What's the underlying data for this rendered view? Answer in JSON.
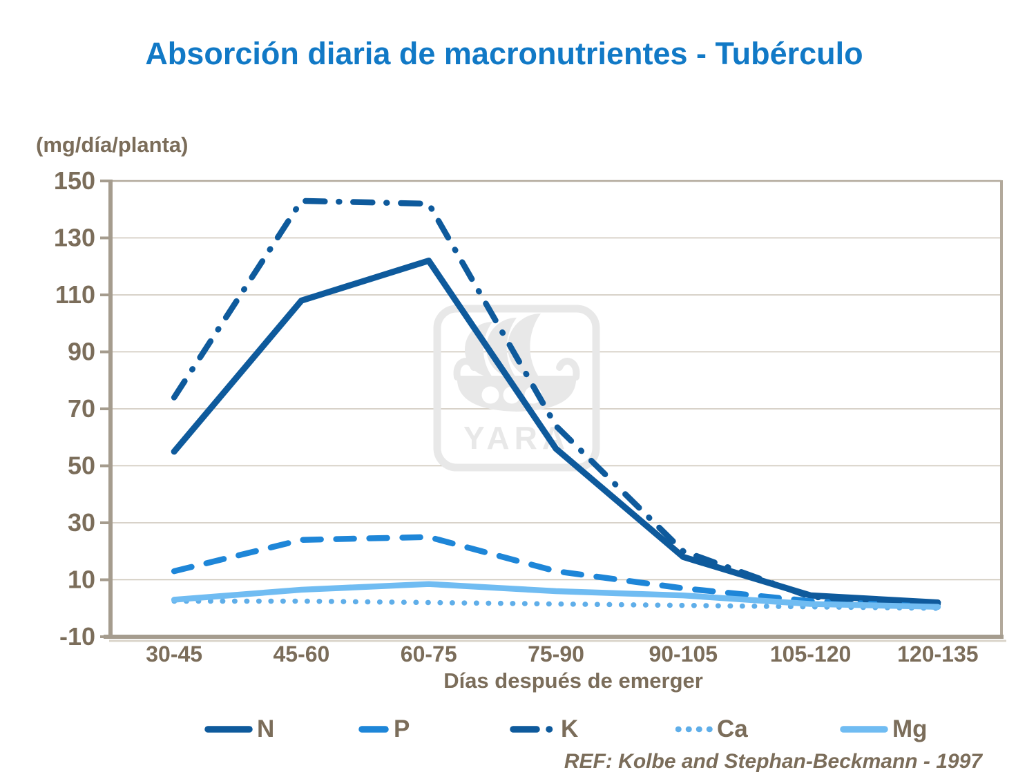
{
  "title": "Absorción diaria de macronutrientes - Tubérculo",
  "y_axis_unit": "(mg/día/planta)",
  "x_axis_title": "Días después de emerger",
  "reference": "REF: Kolbe and Stephan-Beckmann - 1997",
  "watermark": "YARA",
  "colors": {
    "title": "#1179C6",
    "text": "#7B6D5A",
    "axis": "#A59C8E",
    "border": "#B2A99B",
    "gridline": "#CCC4B7",
    "shadow": "#DAD4CA",
    "watermark": "#E8E8E8"
  },
  "chart_data": {
    "type": "line",
    "categories": [
      "30-45",
      "45-60",
      "60-75",
      "75-90",
      "90-105",
      "105-120",
      "120-135"
    ],
    "series": [
      {
        "name": "N",
        "style": "solid",
        "color": "#0E5A9C",
        "values": [
          55,
          108,
          122,
          56,
          18,
          4.5,
          2
        ]
      },
      {
        "name": "P",
        "style": "dashed",
        "color": "#1E86D8",
        "values": [
          13,
          24,
          25,
          13,
          7,
          2.5,
          0.5
        ]
      },
      {
        "name": "K",
        "style": "dash-dot",
        "color": "#0E5A9C",
        "values": [
          74,
          143,
          142,
          64,
          20,
          4,
          1.5
        ]
      },
      {
        "name": "Ca",
        "style": "dotted",
        "color": "#5FAEE9",
        "values": [
          2.5,
          2.5,
          2,
          1.5,
          1,
          0.5,
          0
        ]
      },
      {
        "name": "Mg",
        "style": "solid",
        "color": "#70BCF2",
        "values": [
          3,
          6.5,
          8.5,
          6,
          4.5,
          1.5,
          0.5
        ]
      }
    ],
    "y_ticks": [
      150,
      130,
      110,
      90,
      70,
      50,
      30,
      10,
      -10
    ],
    "ylim": [
      -10,
      150
    ],
    "grid": "horizontal",
    "legend_position": "bottom"
  }
}
